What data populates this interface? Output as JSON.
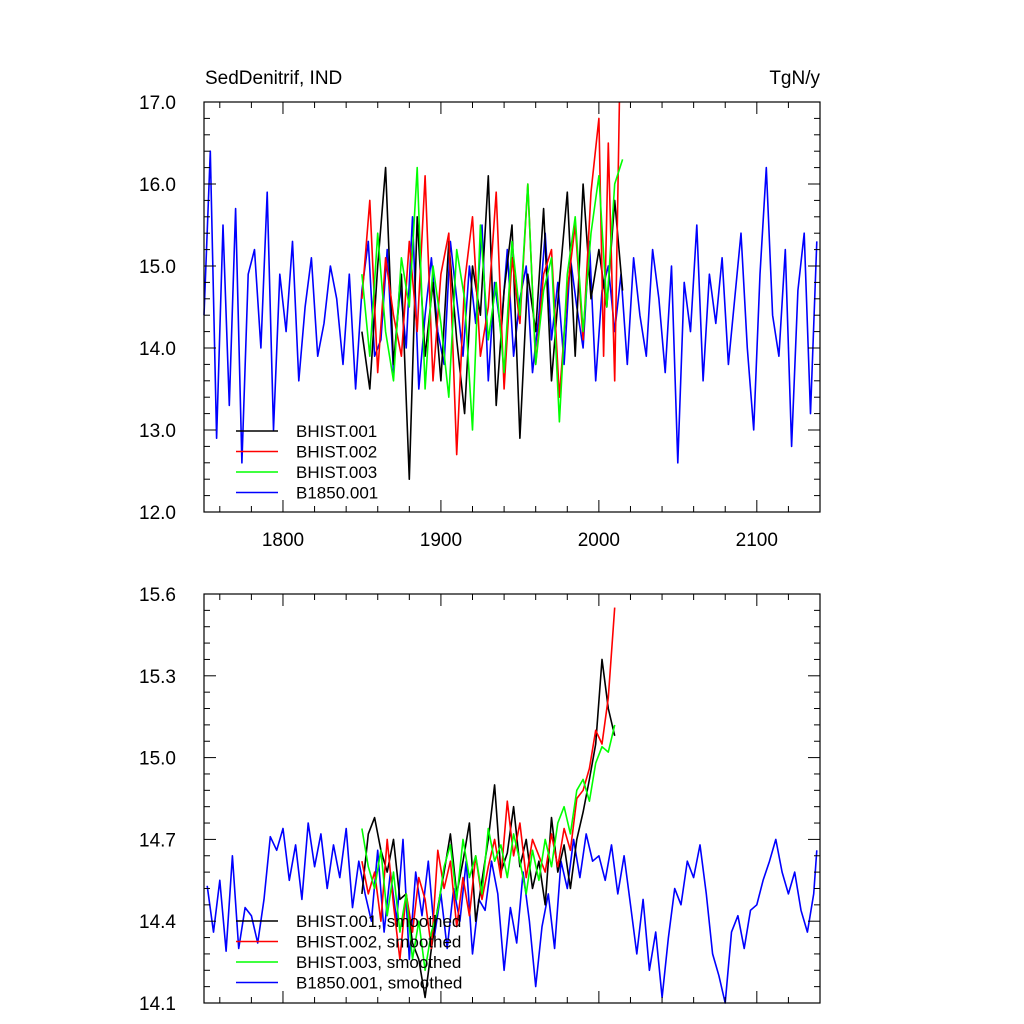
{
  "chart_data": [
    {
      "type": "line",
      "title": "SedDenitrif, IND",
      "units": "TgN/y",
      "xlabel": "",
      "ylabel": "",
      "xlim": [
        1750,
        2140
      ],
      "ylim": [
        12.0,
        17.0
      ],
      "xticks": [
        1800,
        1900,
        2000,
        2100
      ],
      "xtick_labels": [
        "1800",
        "1900",
        "2000",
        "2100"
      ],
      "yticks": [
        12.0,
        13.0,
        14.0,
        15.0,
        16.0,
        17.0
      ],
      "ytick_labels": [
        "12.0",
        "13.0",
        "14.0",
        "15.0",
        "16.0",
        "17.0"
      ],
      "grid": false,
      "legend_position": "bottom-left",
      "series": [
        {
          "name": "B1850.001",
          "color": "#0000ff",
          "x": [
            1750,
            1754,
            1758,
            1762,
            1766,
            1770,
            1774,
            1778,
            1782,
            1786,
            1790,
            1794,
            1798,
            1802,
            1806,
            1810,
            1814,
            1818,
            1822,
            1826,
            1830,
            1834,
            1838,
            1842,
            1846,
            1850,
            1854,
            1858,
            1862,
            1866,
            1870,
            1874,
            1878,
            1882,
            1886,
            1890,
            1894,
            1898,
            1902,
            1906,
            1910,
            1914,
            1918,
            1922,
            1926,
            1930,
            1934,
            1938,
            1942,
            1946,
            1950,
            1954,
            1958,
            1962,
            1966,
            1970,
            1974,
            1978,
            1982,
            1986,
            1990,
            1994,
            1998,
            2002,
            2006,
            2010,
            2014,
            2018,
            2022,
            2026,
            2030,
            2034,
            2038,
            2042,
            2046,
            2050,
            2054,
            2058,
            2062,
            2066,
            2070,
            2074,
            2078,
            2082,
            2086,
            2090,
            2094,
            2098,
            2102,
            2106,
            2110,
            2114,
            2118,
            2122,
            2126,
            2130,
            2134,
            2138
          ],
          "values": [
            14.4,
            16.4,
            12.9,
            15.5,
            13.3,
            15.7,
            12.6,
            14.9,
            15.2,
            14.0,
            15.9,
            13.0,
            14.9,
            14.2,
            15.3,
            13.6,
            14.5,
            15.1,
            13.9,
            14.3,
            15.0,
            14.6,
            13.8,
            14.9,
            13.5,
            14.7,
            15.3,
            13.9,
            14.1,
            15.2,
            13.7,
            14.8,
            14.0,
            15.6,
            13.5,
            14.4,
            15.1,
            14.2,
            13.8,
            15.3,
            14.6,
            13.9,
            15.0,
            14.3,
            15.5,
            13.6,
            14.8,
            14.2,
            15.2,
            13.9,
            14.6,
            15.0,
            13.7,
            14.4,
            15.4,
            14.1,
            14.8,
            13.8,
            15.1,
            14.5,
            14.0,
            15.3,
            13.6,
            14.7,
            15.0,
            14.2,
            14.9,
            13.8,
            15.1,
            14.4,
            13.9,
            15.2,
            14.6,
            13.7,
            15.0,
            12.6,
            14.8,
            14.2,
            15.5,
            13.6,
            14.9,
            14.3,
            15.1,
            13.8,
            14.6,
            15.4,
            14.0,
            13.0,
            14.9,
            16.2,
            14.4,
            13.9,
            15.2,
            12.8,
            14.7,
            15.4,
            13.2,
            15.3
          ]
        },
        {
          "name": "BHIST.001",
          "color": "#000000",
          "x": [
            1850,
            1855,
            1860,
            1865,
            1870,
            1875,
            1880,
            1885,
            1890,
            1895,
            1900,
            1905,
            1910,
            1915,
            1920,
            1925,
            1930,
            1935,
            1940,
            1945,
            1950,
            1955,
            1960,
            1965,
            1970,
            1975,
            1980,
            1985,
            1990,
            1995,
            2000,
            2005,
            2010,
            2015
          ],
          "values": [
            14.2,
            13.5,
            15.0,
            16.2,
            13.8,
            14.9,
            12.4,
            15.6,
            13.9,
            14.8,
            13.6,
            15.3,
            14.1,
            13.2,
            15.0,
            14.4,
            16.1,
            13.3,
            14.7,
            15.5,
            12.9,
            14.9,
            14.2,
            15.7,
            13.6,
            14.8,
            15.9,
            13.9,
            16.0,
            14.6,
            15.2,
            14.5,
            15.8,
            14.7
          ]
        },
        {
          "name": "BHIST.002",
          "color": "#ff0000",
          "x": [
            1850,
            1855,
            1860,
            1865,
            1870,
            1875,
            1880,
            1885,
            1890,
            1895,
            1900,
            1905,
            1910,
            1915,
            1920,
            1925,
            1930,
            1935,
            1940,
            1945,
            1950,
            1955,
            1960,
            1965,
            1970,
            1975,
            1980,
            1985,
            1990,
            1995,
            2000,
            2003,
            2006,
            2010,
            2013
          ],
          "values": [
            14.6,
            15.8,
            13.7,
            15.1,
            14.4,
            13.9,
            15.3,
            14.2,
            16.1,
            13.6,
            14.9,
            15.4,
            12.7,
            14.8,
            15.6,
            13.9,
            14.5,
            15.9,
            13.5,
            15.1,
            14.3,
            16.0,
            13.8,
            14.9,
            15.2,
            13.4,
            14.7,
            15.5,
            14.1,
            15.9,
            16.8,
            13.9,
            16.5,
            13.6,
            17.0
          ]
        },
        {
          "name": "BHIST.003",
          "color": "#00ff00",
          "x": [
            1850,
            1855,
            1860,
            1865,
            1870,
            1875,
            1880,
            1885,
            1890,
            1895,
            1900,
            1905,
            1910,
            1915,
            1920,
            1925,
            1930,
            1935,
            1940,
            1945,
            1950,
            1955,
            1960,
            1965,
            1970,
            1975,
            1980,
            1985,
            1990,
            1995,
            2000,
            2005,
            2010,
            2015
          ],
          "values": [
            14.9,
            13.9,
            15.4,
            14.2,
            13.6,
            15.1,
            14.5,
            16.2,
            13.5,
            15.0,
            14.3,
            13.4,
            15.2,
            14.6,
            13.0,
            15.5,
            14.1,
            14.8,
            13.7,
            15.3,
            14.4,
            16.0,
            13.8,
            14.7,
            15.1,
            13.1,
            14.9,
            15.6,
            14.2,
            15.4,
            16.1,
            14.5,
            16.0,
            16.3
          ]
        }
      ]
    },
    {
      "type": "line",
      "title": "",
      "units": "",
      "xlabel": "",
      "ylabel": "",
      "xlim": [
        1750,
        2140
      ],
      "ylim": [
        14.1,
        15.6
      ],
      "xticks": [
        1800,
        1900,
        2000,
        2100
      ],
      "xtick_labels": [],
      "yticks": [
        14.1,
        14.4,
        14.7,
        15.0,
        15.3,
        15.6
      ],
      "ytick_labels": [
        "14.1",
        "14.4",
        "14.7",
        "15.0",
        "15.3",
        "15.6"
      ],
      "grid": false,
      "legend_position": "bottom-left",
      "series": [
        {
          "name": "B1850.001, smoothed",
          "color": "#0000ff",
          "x": [
            1752,
            1756,
            1760,
            1764,
            1768,
            1772,
            1776,
            1780,
            1784,
            1788,
            1792,
            1796,
            1800,
            1804,
            1808,
            1812,
            1816,
            1820,
            1824,
            1828,
            1832,
            1836,
            1840,
            1844,
            1848,
            1852,
            1856,
            1860,
            1864,
            1868,
            1872,
            1876,
            1880,
            1884,
            1888,
            1892,
            1896,
            1900,
            1904,
            1908,
            1912,
            1916,
            1920,
            1924,
            1928,
            1932,
            1936,
            1940,
            1944,
            1948,
            1952,
            1956,
            1960,
            1964,
            1968,
            1972,
            1976,
            1980,
            1984,
            1988,
            1992,
            1996,
            2000,
            2004,
            2008,
            2012,
            2016,
            2020,
            2024,
            2028,
            2032,
            2036,
            2040,
            2044,
            2048,
            2052,
            2056,
            2060,
            2064,
            2068,
            2072,
            2076,
            2080,
            2084,
            2088,
            2092,
            2096,
            2100,
            2104,
            2108,
            2112,
            2116,
            2120,
            2124,
            2128,
            2132,
            2136,
            2138
          ],
          "values": [
            14.53,
            14.36,
            14.55,
            14.29,
            14.64,
            14.3,
            14.45,
            14.42,
            14.32,
            14.48,
            14.71,
            14.66,
            14.74,
            14.55,
            14.68,
            14.48,
            14.76,
            14.6,
            14.72,
            14.52,
            14.68,
            14.56,
            14.74,
            14.45,
            14.62,
            14.5,
            14.4,
            14.66,
            14.36,
            14.58,
            14.4,
            14.7,
            14.26,
            14.58,
            14.42,
            14.62,
            14.35,
            14.5,
            14.3,
            14.52,
            14.4,
            14.62,
            14.28,
            14.48,
            14.44,
            14.62,
            14.5,
            14.22,
            14.45,
            14.32,
            14.58,
            14.4,
            14.16,
            14.38,
            14.5,
            14.3,
            14.62,
            14.52,
            14.7,
            14.56,
            14.72,
            14.62,
            14.64,
            14.55,
            14.68,
            14.5,
            14.64,
            14.46,
            14.28,
            14.48,
            14.22,
            14.36,
            14.12,
            14.34,
            14.52,
            14.46,
            14.62,
            14.56,
            14.68,
            14.5,
            14.28,
            14.2,
            14.1,
            14.36,
            14.42,
            14.3,
            14.44,
            14.46,
            14.55,
            14.62,
            14.7,
            14.58,
            14.5,
            14.58,
            14.44,
            14.36,
            14.5,
            14.66
          ]
        },
        {
          "name": "BHIST.001, smoothed",
          "color": "#000000",
          "x": [
            1850,
            1854,
            1858,
            1862,
            1866,
            1870,
            1874,
            1878,
            1882,
            1886,
            1890,
            1894,
            1898,
            1902,
            1906,
            1910,
            1914,
            1918,
            1922,
            1926,
            1930,
            1934,
            1938,
            1942,
            1946,
            1950,
            1954,
            1958,
            1962,
            1966,
            1970,
            1974,
            1978,
            1982,
            1986,
            1990,
            1994,
            1998,
            2002,
            2006,
            2010
          ],
          "values": [
            14.5,
            14.72,
            14.78,
            14.66,
            14.58,
            14.7,
            14.48,
            14.5,
            14.32,
            14.26,
            14.12,
            14.3,
            14.45,
            14.58,
            14.72,
            14.5,
            14.62,
            14.76,
            14.4,
            14.55,
            14.7,
            14.9,
            14.58,
            14.65,
            14.82,
            14.6,
            14.7,
            14.52,
            14.62,
            14.46,
            14.78,
            14.58,
            14.68,
            14.52,
            14.7,
            14.8,
            14.92,
            15.05,
            15.36,
            15.18,
            15.08
          ]
        },
        {
          "name": "BHIST.002, smoothed",
          "color": "#ff0000",
          "x": [
            1850,
            1854,
            1858,
            1862,
            1866,
            1870,
            1874,
            1878,
            1882,
            1886,
            1890,
            1894,
            1898,
            1902,
            1906,
            1910,
            1914,
            1918,
            1922,
            1926,
            1930,
            1934,
            1938,
            1942,
            1946,
            1950,
            1954,
            1958,
            1962,
            1966,
            1970,
            1974,
            1978,
            1982,
            1986,
            1990,
            1994,
            1998,
            2002,
            2006,
            2010
          ],
          "values": [
            14.62,
            14.5,
            14.58,
            14.4,
            14.7,
            14.46,
            14.26,
            14.5,
            14.36,
            14.56,
            14.48,
            14.3,
            14.66,
            14.52,
            14.62,
            14.38,
            14.56,
            14.42,
            14.64,
            14.48,
            14.6,
            14.7,
            14.56,
            14.84,
            14.64,
            14.76,
            14.56,
            14.7,
            14.64,
            14.58,
            14.72,
            14.6,
            14.74,
            14.66,
            14.85,
            14.88,
            14.96,
            15.1,
            15.05,
            15.22,
            15.55
          ]
        },
        {
          "name": "BHIST.003, smoothed",
          "color": "#00ff00",
          "x": [
            1850,
            1854,
            1858,
            1862,
            1866,
            1870,
            1874,
            1878,
            1882,
            1886,
            1890,
            1894,
            1898,
            1902,
            1906,
            1910,
            1914,
            1918,
            1922,
            1926,
            1930,
            1934,
            1938,
            1942,
            1946,
            1950,
            1954,
            1958,
            1962,
            1966,
            1970,
            1974,
            1978,
            1982,
            1986,
            1990,
            1994,
            1998,
            2002,
            2006,
            2010
          ],
          "values": [
            14.74,
            14.6,
            14.52,
            14.66,
            14.42,
            14.58,
            14.36,
            14.5,
            14.26,
            14.4,
            14.22,
            14.36,
            14.44,
            14.6,
            14.68,
            14.48,
            14.7,
            14.56,
            14.64,
            14.5,
            14.74,
            14.62,
            14.68,
            14.56,
            14.72,
            14.62,
            14.5,
            14.66,
            14.55,
            14.7,
            14.6,
            14.76,
            14.82,
            14.72,
            14.88,
            14.92,
            14.84,
            14.98,
            15.04,
            15.02,
            15.12
          ]
        }
      ]
    }
  ]
}
